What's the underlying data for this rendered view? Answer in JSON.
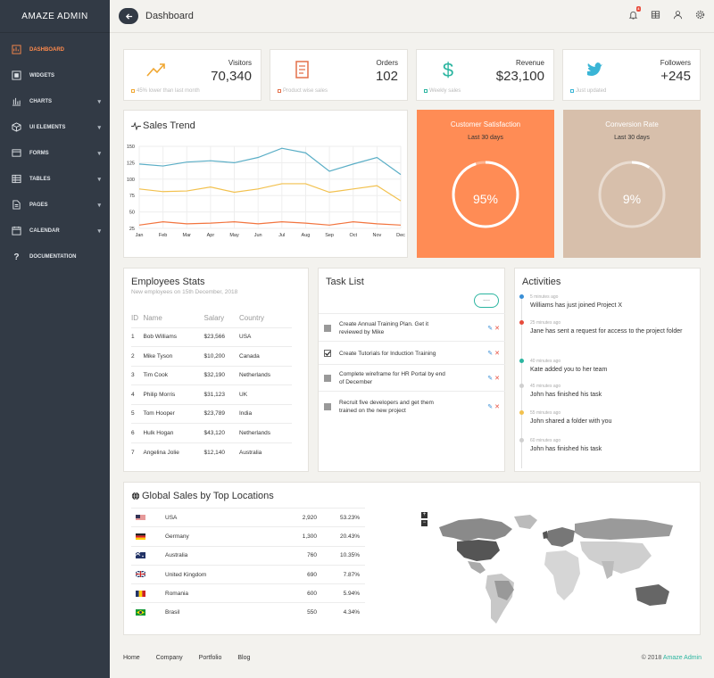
{
  "sidebar": {
    "brand": "AMAZE ADMIN",
    "items": [
      {
        "label": "DASHBOARD",
        "icon": "dashboard-icon",
        "caret": false
      },
      {
        "label": "WIDGETS",
        "icon": "widgets-icon",
        "caret": false
      },
      {
        "label": "CHARTS",
        "icon": "charts-icon",
        "caret": true
      },
      {
        "label": "UI ELEMENTS",
        "icon": "ui-elements-icon",
        "caret": true
      },
      {
        "label": "FORMS",
        "icon": "forms-icon",
        "caret": true
      },
      {
        "label": "TABLES",
        "icon": "tables-icon",
        "caret": true
      },
      {
        "label": "PAGES",
        "icon": "pages-icon",
        "caret": true
      },
      {
        "label": "CALENDAR",
        "icon": "calendar-icon",
        "caret": true
      },
      {
        "label": "DOCUMENTATION",
        "icon": "help-icon",
        "caret": false
      }
    ]
  },
  "header": {
    "title": "Dashboard",
    "notification_count": "4"
  },
  "stats": [
    {
      "label": "Visitors",
      "value": "70,340",
      "footer": "45% lower than last month",
      "icon": "trend-up-icon",
      "color": "#f0a732"
    },
    {
      "label": "Orders",
      "value": "102",
      "footer": "Product wise sales",
      "icon": "receipt-icon",
      "color": "#e4704a"
    },
    {
      "label": "Revenue",
      "value": "$23,100",
      "footer": "Weekly sales",
      "icon": "dollar-icon",
      "color": "#2bb5a0"
    },
    {
      "label": "Followers",
      "value": "+245",
      "footer": "Just updated",
      "icon": "twitter-icon",
      "color": "#3ab5d6"
    }
  ],
  "sales_trend": {
    "title": "Sales Trend"
  },
  "chart_data": {
    "type": "line",
    "x": [
      "Jan",
      "Feb",
      "Mar",
      "Apr",
      "May",
      "Jun",
      "Jul",
      "Aug",
      "Sep",
      "Oct",
      "Nov",
      "Dec"
    ],
    "yticks": [
      25,
      50,
      75,
      100,
      125,
      150
    ],
    "ylim": [
      25,
      150
    ],
    "grid": true,
    "series": [
      {
        "color": "#5aaec6",
        "values": [
          123,
          120,
          126,
          128,
          125,
          133,
          147,
          140,
          112,
          123,
          133,
          107
        ]
      },
      {
        "color": "#f2c14e",
        "values": [
          85,
          81,
          82,
          88,
          80,
          85,
          93,
          93,
          80,
          85,
          90,
          67
        ]
      },
      {
        "color": "#f2743e",
        "values": [
          30,
          35,
          32,
          33,
          35,
          32,
          35,
          33,
          30,
          35,
          32,
          30
        ]
      }
    ]
  },
  "satisfaction": {
    "title": "Customer Satisfaction",
    "subtitle": "Last 30 days",
    "value": "95%",
    "fraction": 0.95,
    "bg": "#ff8c55"
  },
  "conversion": {
    "title": "Conversion Rate",
    "subtitle": "Last 30 days",
    "value": "9%",
    "fraction": 0.09,
    "bg": "#d7bfab"
  },
  "employees": {
    "title": "Employees Stats",
    "subtitle": "New employees on 15th December, 2018",
    "columns": [
      "ID",
      "Name",
      "Salary",
      "Country"
    ],
    "rows": [
      [
        "1",
        "Bob Williams",
        "$23,566",
        "USA"
      ],
      [
        "2",
        "Mike Tyson",
        "$10,200",
        "Canada"
      ],
      [
        "3",
        "Tim Cook",
        "$32,190",
        "Netherlands"
      ],
      [
        "4",
        "Philip Morris",
        "$31,123",
        "UK"
      ],
      [
        "5",
        "Tom Hooper",
        "$23,789",
        "India"
      ],
      [
        "6",
        "Hulk Hogan",
        "$43,120",
        "Netherlands"
      ],
      [
        "7",
        "Angelina Jolie",
        "$12,140",
        "Australia"
      ]
    ]
  },
  "tasks": {
    "title": "Task List",
    "more_label": "....",
    "items": [
      {
        "text": "Create Annual Training Plan. Get it reviewed by Mike",
        "checked": false
      },
      {
        "text": "Create Tutorials for Induction Training",
        "checked": true
      },
      {
        "text": "Complete wireframe for HR Portal by end of December",
        "checked": false
      },
      {
        "text": "Recruit five developers and get them trained on the new project",
        "checked": false
      }
    ]
  },
  "activities": {
    "title": "Activities",
    "items": [
      {
        "time": "5 minutes ago",
        "text": "Williams has just joined Project X",
        "color": "#3a8fd6"
      },
      {
        "time": "25 minutes ago",
        "text": "Jane has sent a request for access to the project folder",
        "color": "#e74c3c"
      },
      {
        "time": "40 minutes ago",
        "text": "Kate added you to her team",
        "color": "#2bb5a0"
      },
      {
        "time": "45 minutes ago",
        "text": "John has finished his task",
        "color": "#cfcfcf"
      },
      {
        "time": "55 minutes ago",
        "text": "John shared a folder with you",
        "color": "#f2c14e"
      },
      {
        "time": "60 minutes ago",
        "text": "John has finished his task",
        "color": "#cfcfcf"
      }
    ]
  },
  "global_sales": {
    "title": "Global Sales by Top Locations",
    "rows": [
      {
        "country": "USA",
        "sales": "2,920",
        "pct": "53.23%",
        "flag": "us-flag-icon"
      },
      {
        "country": "Germany",
        "sales": "1,300",
        "pct": "20.43%",
        "flag": "de-flag-icon"
      },
      {
        "country": "Australia",
        "sales": "760",
        "pct": "10.35%",
        "flag": "au-flag-icon"
      },
      {
        "country": "United Kingdom",
        "sales": "690",
        "pct": "7.87%",
        "flag": "uk-flag-icon"
      },
      {
        "country": "Romania",
        "sales": "600",
        "pct": "5.94%",
        "flag": "ro-flag-icon"
      },
      {
        "country": "Brasil",
        "sales": "550",
        "pct": "4.34%",
        "flag": "br-flag-icon"
      }
    ],
    "zoom_in": "+",
    "zoom_out": "−"
  },
  "footer": {
    "links": [
      "Home",
      "Company",
      "Portfolio",
      "Blog"
    ],
    "copyright": "© 2018",
    "brand": "Amaze Admin"
  }
}
